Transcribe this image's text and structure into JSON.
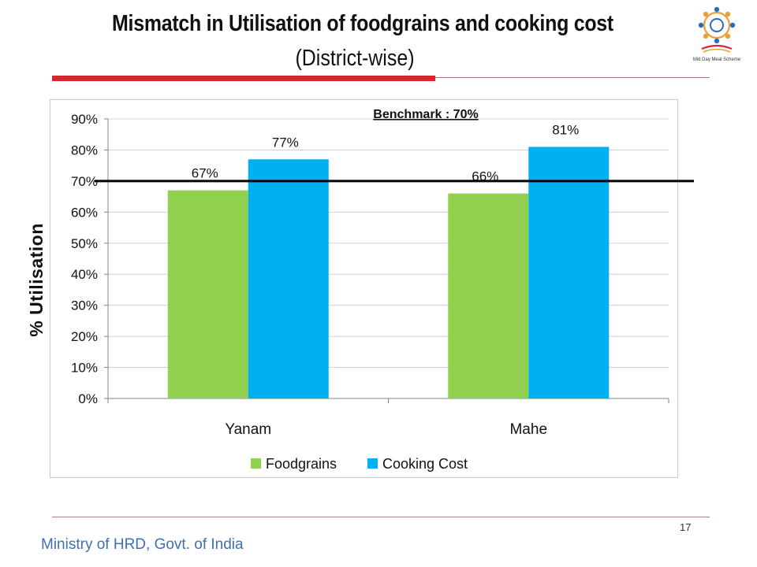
{
  "header": {
    "title": "Mismatch in Utilisation of foodgrains and cooking cost",
    "subtitle": "(District-wise)",
    "logo_icon": "mid-day-meal-scheme-logo",
    "logo_text": "Mid Day Meal Scheme"
  },
  "chart_data": {
    "type": "bar",
    "categories": [
      "Yanam",
      "Mahe"
    ],
    "series": [
      {
        "name": "Foodgrains",
        "values": [
          67,
          66
        ],
        "labels": [
          "67%",
          "66%"
        ],
        "color": "#92d050"
      },
      {
        "name": "Cooking Cost",
        "values": [
          77,
          81
        ],
        "labels": [
          "77%",
          "81%"
        ],
        "color": "#00b0f0"
      }
    ],
    "ylabel": "% Utilisation",
    "ylim": [
      0,
      90
    ],
    "yticks": [
      "0%",
      "10%",
      "20%",
      "30%",
      "40%",
      "50%",
      "60%",
      "70%",
      "80%",
      "90%"
    ],
    "grid": true,
    "legend_position": "bottom",
    "benchmark": {
      "label": "Benchmark : 70%",
      "value": 70,
      "color": "#000000"
    }
  },
  "footer": {
    "page_number": "17",
    "ministry": "Ministry of HRD, Govt. of India"
  }
}
